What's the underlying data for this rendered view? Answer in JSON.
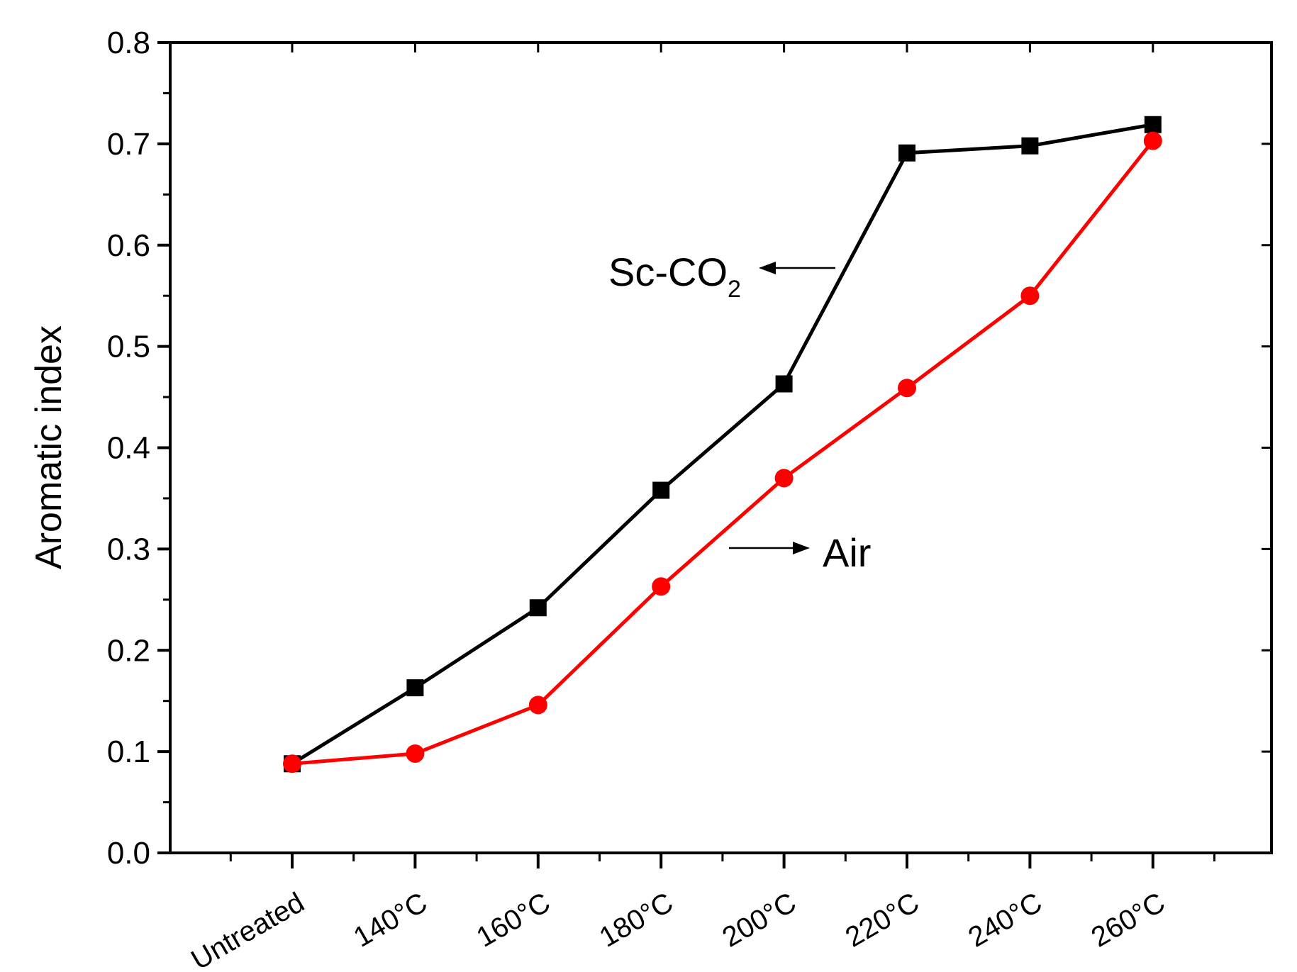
{
  "chart_data": {
    "type": "line",
    "title": "",
    "xlabel": "",
    "ylabel": "Aromatic index",
    "categories": [
      "Untreated",
      "140°C",
      "160°C",
      "180°C",
      "200°C",
      "220°C",
      "240°C",
      "260°C"
    ],
    "ylim": [
      0,
      0.8
    ],
    "yticks": [
      "0.0",
      "0.1",
      "0.2",
      "0.3",
      "0.4",
      "0.5",
      "0.6",
      "0.7",
      "0.8"
    ],
    "grid": false,
    "series": [
      {
        "label": "Sc-CO",
        "label_sub": "2",
        "marker": "square",
        "color": "#000000",
        "values": [
          0.088,
          0.163,
          0.242,
          0.358,
          0.463,
          0.691,
          0.698,
          0.719
        ]
      },
      {
        "label": "Air",
        "marker": "circle",
        "color": "#ff0000",
        "values": [
          0.088,
          0.098,
          0.146,
          0.263,
          0.37,
          0.459,
          0.55,
          0.703
        ]
      }
    ]
  }
}
